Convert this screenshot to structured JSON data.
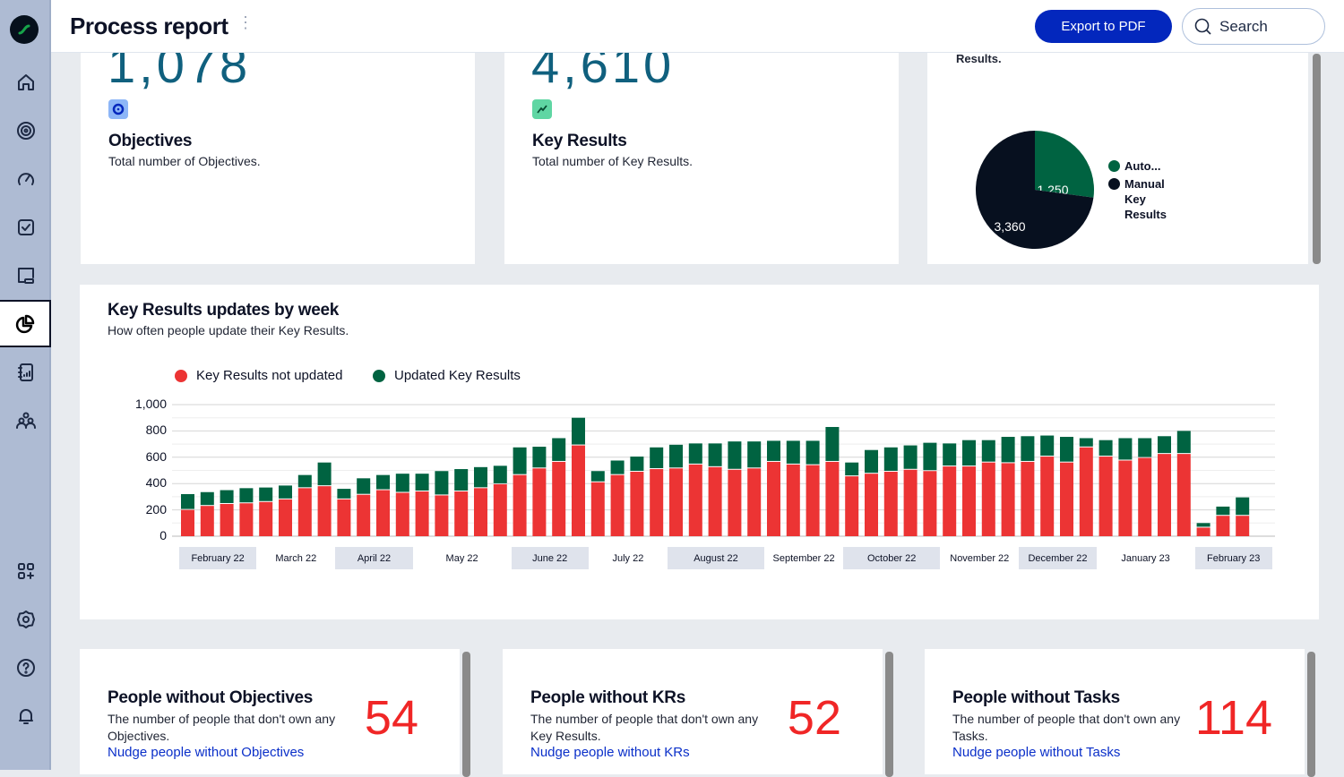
{
  "header": {
    "title": "Process report",
    "export_label": "Export to PDF",
    "search_placeholder": "Search"
  },
  "sidebar": {
    "items": [
      "home",
      "objectives",
      "key-results",
      "tasks",
      "reviews",
      "reports",
      "insights",
      "people",
      "add-apps",
      "settings",
      "help",
      "notifications"
    ],
    "active": "reports"
  },
  "cards": {
    "objectives": {
      "value": "1,078",
      "title": "Objectives",
      "desc": "Total number of Objectives."
    },
    "key_results": {
      "value": "4,610",
      "title": "Key Results",
      "desc": "Total number of Key Results."
    },
    "kr_types": {
      "desc_tail": "Results.",
      "pie": {
        "type": "pie",
        "slices": [
          {
            "label": "Auto...",
            "value": 1250,
            "value_label": "1,250",
            "color": "#006341"
          },
          {
            "label": "Manual Key Results",
            "value": 3360,
            "value_label": "3,360",
            "color": "#07101f"
          }
        ]
      }
    }
  },
  "weekly": {
    "title": "Key Results updates by week",
    "subtitle": "How often people update their Key Results."
  },
  "chart_data": {
    "type": "bar",
    "stacked": true,
    "ylim": [
      0,
      1000
    ],
    "yticks": [
      "0",
      "200",
      "400",
      "600",
      "800",
      "1,000"
    ],
    "grid": true,
    "legend": "top-left",
    "x_tick_labels": [
      "February 22",
      "March 22",
      "April 22",
      "May 22",
      "June 22",
      "July 22",
      "August 22",
      "September 22",
      "October 22",
      "November 22",
      "December 22",
      "January 23",
      "February 23"
    ],
    "series": [
      {
        "name": "Key Results not updated",
        "color": "#ec3434",
        "values": [
          200,
          230,
          245,
          250,
          260,
          280,
          365,
          380,
          280,
          315,
          350,
          330,
          340,
          310,
          340,
          365,
          395,
          465,
          515,
          565,
          690,
          410,
          465,
          490,
          510,
          515,
          545,
          525,
          505,
          515,
          565,
          545,
          540,
          565,
          455,
          475,
          490,
          505,
          495,
          530,
          530,
          560,
          555,
          565,
          605,
          560,
          675,
          605,
          575,
          595,
          625,
          625,
          65,
          155,
          155
        ]
      },
      {
        "name": "Updated Key Results",
        "color": "#006341",
        "values": [
          120,
          105,
          105,
          115,
          110,
          105,
          100,
          180,
          80,
          125,
          115,
          145,
          135,
          185,
          170,
          160,
          140,
          210,
          165,
          180,
          210,
          85,
          110,
          115,
          165,
          180,
          160,
          180,
          215,
          205,
          160,
          180,
          185,
          265,
          105,
          180,
          185,
          185,
          215,
          175,
          200,
          170,
          200,
          195,
          160,
          195,
          70,
          125,
          170,
          150,
          135,
          175,
          35,
          70,
          140
        ]
      }
    ]
  },
  "people": [
    {
      "title": "People without Objectives",
      "desc": "The number of people that don't own any Objectives.",
      "count": "54",
      "link": "Nudge people without Objectives"
    },
    {
      "title": "People without KRs",
      "desc": "The number of people that don't own any Key Results.",
      "count": "52",
      "link": "Nudge people without KRs"
    },
    {
      "title": "People without Tasks",
      "desc": "The number of people that don't own any Tasks.",
      "count": "114",
      "link": "Nudge people without Tasks"
    }
  ]
}
